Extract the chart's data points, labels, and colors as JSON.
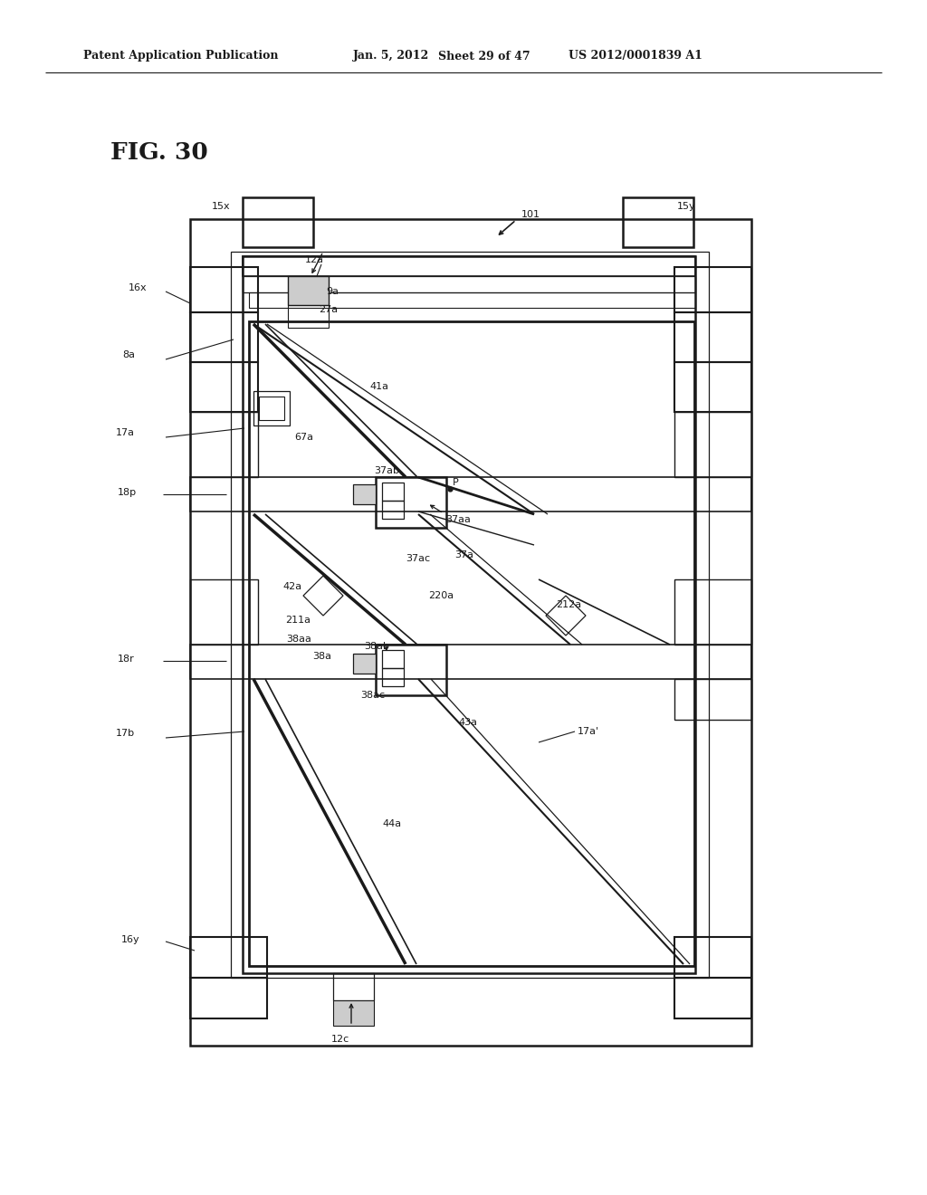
{
  "bg_color": "#ffffff",
  "lc": "#1a1a1a",
  "fig_label": "FIG. 30",
  "header1": "Patent Application Publication",
  "header2": "Jan. 5, 2012",
  "header3": "Sheet 29 of 47",
  "header4": "US 2012/0001839 A1"
}
